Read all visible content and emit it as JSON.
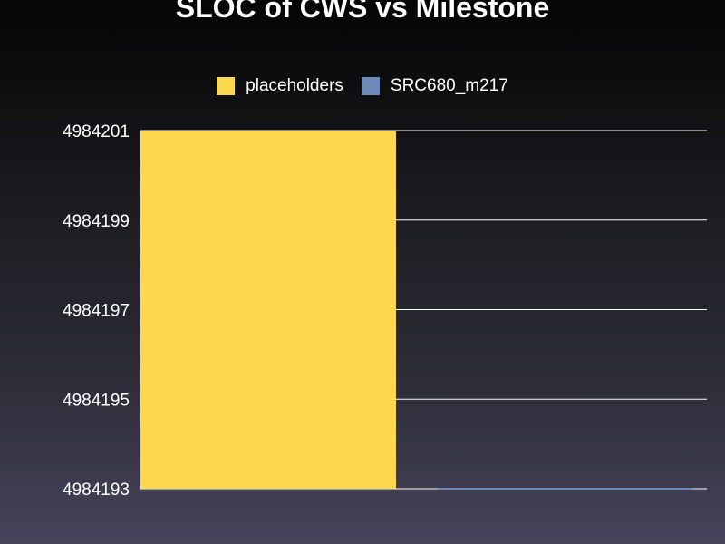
{
  "chart_data": {
    "type": "bar",
    "title": "SLOC of CWS vs Milestone",
    "xlabel": "",
    "ylabel": "",
    "ylim": [
      4984193,
      4984201
    ],
    "yticks": [
      4984193,
      4984195,
      4984197,
      4984199,
      4984201
    ],
    "grid": true,
    "legend_position": "top-center",
    "series": [
      {
        "name": "placeholders",
        "value": 4984201,
        "color": "#fdd84f"
      },
      {
        "name": "SRC680_m217",
        "value": 4984193,
        "color": "#6f8ab9"
      }
    ]
  }
}
